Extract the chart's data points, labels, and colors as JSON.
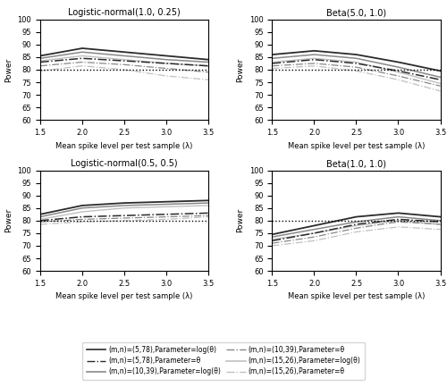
{
  "titles": [
    "Logistic-normal(1.0, 0.25)",
    "Beta(5.0, 1.0)",
    "Logistic-normal(0.5, 0.5)",
    "Beta(1.0, 1.0)"
  ],
  "xlabel": "Mean spike level per test sample (λ)",
  "ylabel": "Power",
  "xlim": [
    1.5,
    3.5
  ],
  "ylim": [
    60,
    100
  ],
  "yticks": [
    60,
    65,
    70,
    75,
    80,
    85,
    90,
    95,
    100
  ],
  "xticks": [
    1.5,
    2.0,
    2.5,
    3.0,
    3.5
  ],
  "hline": 80,
  "lambda": [
    1.5,
    2.0,
    2.5,
    3.0,
    3.5
  ],
  "colors": {
    "dark": "#2b2b2b",
    "mid": "#888888",
    "light": "#c0c0c0"
  },
  "panel_data": {
    "Logistic-normal(1.0, 0.25)": {
      "solid_dark": [
        85.5,
        88.5,
        87.0,
        85.5,
        84.0
      ],
      "solid_mid": [
        84.5,
        87.0,
        85.5,
        84.0,
        83.0
      ],
      "solid_light": [
        83.5,
        85.5,
        84.0,
        82.5,
        81.5
      ],
      "dashdot_dark": [
        83.0,
        84.5,
        83.5,
        82.5,
        81.5
      ],
      "dashdot_mid": [
        81.5,
        83.0,
        82.0,
        80.5,
        79.0
      ],
      "dashdot_light": [
        79.5,
        81.5,
        80.0,
        77.5,
        76.0
      ]
    },
    "Beta(5.0, 1.0)": {
      "solid_dark": [
        86.0,
        87.5,
        86.0,
        83.0,
        79.5
      ],
      "solid_mid": [
        84.5,
        86.0,
        84.5,
        81.0,
        77.0
      ],
      "solid_light": [
        83.0,
        84.5,
        83.0,
        79.0,
        74.5
      ],
      "dashdot_dark": [
        82.5,
        84.0,
        82.5,
        79.5,
        76.0
      ],
      "dashdot_mid": [
        81.5,
        82.5,
        81.0,
        77.5,
        73.5
      ],
      "dashdot_light": [
        80.5,
        81.5,
        79.5,
        76.0,
        71.5
      ]
    },
    "Logistic-normal(0.5, 0.5)": {
      "solid_dark": [
        82.5,
        86.0,
        87.0,
        87.5,
        88.0
      ],
      "solid_mid": [
        81.5,
        85.0,
        86.0,
        86.5,
        87.0
      ],
      "solid_light": [
        80.5,
        83.5,
        85.0,
        85.5,
        86.0
      ],
      "dashdot_dark": [
        80.0,
        81.5,
        82.0,
        82.5,
        83.0
      ],
      "dashdot_mid": [
        79.5,
        80.5,
        81.0,
        81.5,
        82.0
      ],
      "dashdot_light": [
        78.5,
        79.5,
        80.0,
        80.5,
        81.5
      ]
    },
    "Beta(1.0, 1.0)": {
      "solid_dark": [
        74.5,
        78.0,
        81.5,
        83.0,
        81.5
      ],
      "solid_mid": [
        73.5,
        76.5,
        79.5,
        81.5,
        80.0
      ],
      "solid_light": [
        72.5,
        75.0,
        78.0,
        80.0,
        78.5
      ],
      "dashdot_dark": [
        72.0,
        75.0,
        78.5,
        80.5,
        79.5
      ],
      "dashdot_mid": [
        71.0,
        73.5,
        77.0,
        79.5,
        78.5
      ],
      "dashdot_light": [
        70.0,
        72.0,
        75.5,
        77.5,
        76.5
      ]
    }
  },
  "legend_labels_left": [
    "(m,n)=(5,78),Parameter=log(θ)",
    "(m,n)=(10,39),Parameter=log(θ)",
    "(m,n)=(15,26),Parameter=log(θ)"
  ],
  "legend_labels_right": [
    "(m,n)=(5,78),Parameter=θ",
    "(m,n)=(10,39),Parameter=θ",
    "(m,n)=(15,26),Parameter=θ"
  ]
}
